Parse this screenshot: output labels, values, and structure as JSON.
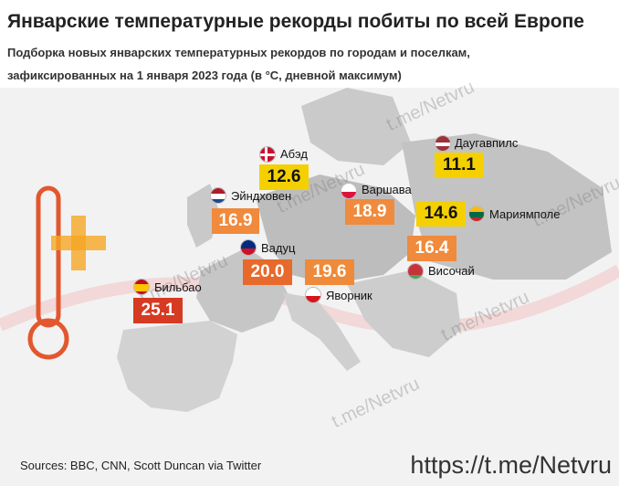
{
  "title": "Январские температурные рекорды побиты по всей Европе",
  "subtitle_line1": "Подборка новых январских температурных рекордов по городам и поселкам,",
  "subtitle_line2": "зафиксированных на 1 января 2023 года (в °C, дневной максимум)",
  "cities": [
    {
      "name": "Абэд",
      "value": "12.6",
      "box_color": "#f5d000",
      "text_color": "#111111",
      "flag": "dk"
    },
    {
      "name": "Эйндховен",
      "value": "16.9",
      "box_color": "#f08a3c",
      "text_color": "#ffffff",
      "flag": "nl"
    },
    {
      "name": "Вадуц",
      "value": "20.0",
      "box_color": "#e8692c",
      "text_color": "#ffffff",
      "flag": "li"
    },
    {
      "name": "Бильбао",
      "value": "25.1",
      "box_color": "#d63a22",
      "text_color": "#ffffff",
      "flag": "es"
    },
    {
      "name": "Варшава",
      "value": "18.9",
      "box_color": "#f08a3c",
      "text_color": "#ffffff",
      "flag": "pl"
    },
    {
      "name": "Яворник",
      "value": "19.6",
      "box_color": "#ef8a3a",
      "text_color": "#ffffff",
      "flag": "cz"
    },
    {
      "name": "Даугавпилс",
      "value": "11.1",
      "box_color": "#f5d000",
      "text_color": "#111111",
      "flag": "lv"
    },
    {
      "name": "Мариямполе",
      "value": "14.6",
      "box_color": "#f5d000",
      "text_color": "#111111",
      "flag": "lt"
    },
    {
      "name": "Височай",
      "value": "16.4",
      "box_color": "#f08a3c",
      "text_color": "#ffffff",
      "flag": "by"
    }
  ],
  "sources": "Sources: BBC, CNN, Scott Duncan via Twitter",
  "telegram_link": "https://t.me/Netvru",
  "watermark_text": "t.me/Netvru",
  "colors": {
    "land": "#d2d2d2",
    "land_dark": "#bdbdbd",
    "sea": "#f2f2f2",
    "accent_red": "#d63a22"
  }
}
